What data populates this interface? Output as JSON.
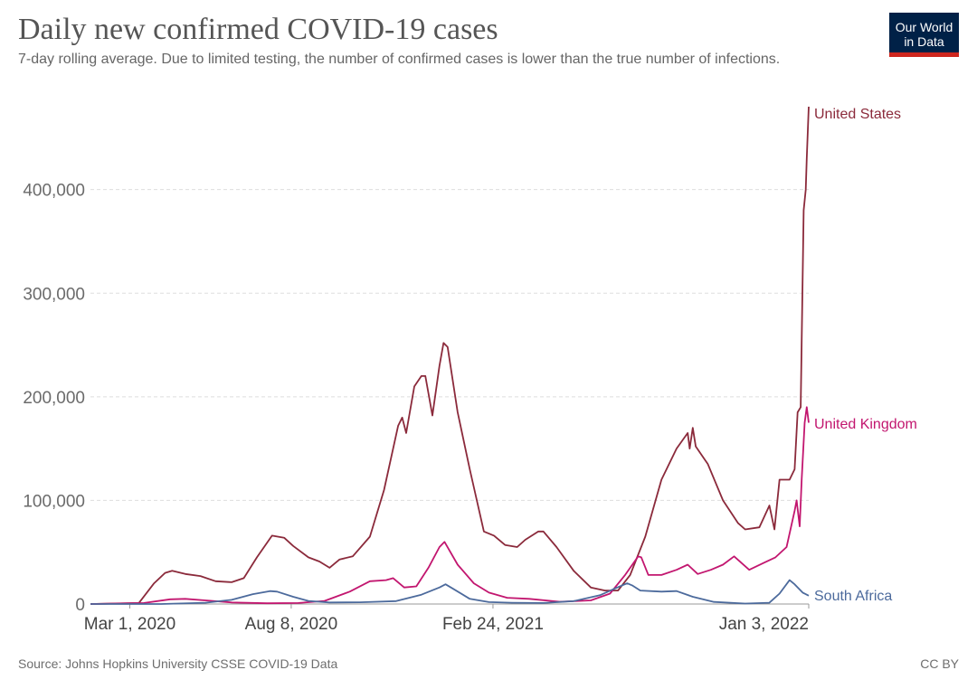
{
  "title": "Daily new confirmed COVID-19 cases",
  "subtitle": "7-day rolling average. Due to limited testing, the number of confirmed cases is lower than the true number of infections.",
  "logo": {
    "line1": "Our World",
    "line2": "in Data"
  },
  "footer": {
    "source": "Source: Johns Hopkins University CSSE COVID-19 Data",
    "license": "CC BY"
  },
  "colors": {
    "united_states": "#8b2a3b",
    "united_kingdom": "#c2166f",
    "south_africa": "#4c6a9c",
    "logo_bg": "#002147",
    "logo_bar": "#ce261e"
  },
  "chart_data": {
    "type": "line",
    "title": "Daily new confirmed COVID-19 cases",
    "ylim": [
      0,
      480000
    ],
    "xlim": [
      "2020-01-22",
      "2022-01-03"
    ],
    "y_ticks": [
      {
        "value": 0,
        "label": "0"
      },
      {
        "value": 100000,
        "label": "100,000"
      },
      {
        "value": 200000,
        "label": "200,000"
      },
      {
        "value": 300000,
        "label": "300,000"
      },
      {
        "value": 400000,
        "label": "400,000"
      }
    ],
    "x_ticks": [
      {
        "date": "2020-03-01",
        "label": "Mar 1, 2020"
      },
      {
        "date": "2020-08-08",
        "label": "Aug 8, 2020"
      },
      {
        "date": "2021-02-24",
        "label": "Feb 24, 2021"
      },
      {
        "date": "2022-01-03",
        "label": "Jan 3, 2022"
      }
    ],
    "grid": "horizontal-dashed",
    "legend": "end-of-line labels",
    "series": [
      {
        "name": "United States",
        "color": "#8b2a3b",
        "points": [
          [
            "2020-01-22",
            0
          ],
          [
            "2020-03-10",
            1000
          ],
          [
            "2020-03-25",
            20000
          ],
          [
            "2020-04-05",
            30000
          ],
          [
            "2020-04-12",
            32000
          ],
          [
            "2020-04-25",
            29000
          ],
          [
            "2020-05-10",
            27000
          ],
          [
            "2020-05-25",
            22000
          ],
          [
            "2020-06-10",
            21000
          ],
          [
            "2020-06-22",
            25000
          ],
          [
            "2020-07-05",
            45000
          ],
          [
            "2020-07-20",
            66000
          ],
          [
            "2020-08-01",
            64000
          ],
          [
            "2020-08-10",
            56000
          ],
          [
            "2020-08-25",
            45000
          ],
          [
            "2020-09-05",
            41000
          ],
          [
            "2020-09-15",
            35000
          ],
          [
            "2020-09-25",
            43000
          ],
          [
            "2020-10-08",
            46000
          ],
          [
            "2020-10-25",
            65000
          ],
          [
            "2020-11-08",
            110000
          ],
          [
            "2020-11-22",
            172000
          ],
          [
            "2020-11-26",
            180000
          ],
          [
            "2020-11-30",
            165000
          ],
          [
            "2020-12-08",
            210000
          ],
          [
            "2020-12-15",
            220000
          ],
          [
            "2020-12-19",
            220000
          ],
          [
            "2020-12-26",
            182000
          ],
          [
            "2021-01-02",
            230000
          ],
          [
            "2021-01-06",
            252000
          ],
          [
            "2021-01-10",
            248000
          ],
          [
            "2021-01-20",
            185000
          ],
          [
            "2021-02-01",
            130000
          ],
          [
            "2021-02-15",
            70000
          ],
          [
            "2021-02-25",
            66000
          ],
          [
            "2021-03-08",
            57000
          ],
          [
            "2021-03-20",
            55000
          ],
          [
            "2021-03-28",
            62000
          ],
          [
            "2021-04-10",
            70000
          ],
          [
            "2021-04-15",
            70000
          ],
          [
            "2021-04-28",
            55000
          ],
          [
            "2021-05-15",
            32000
          ],
          [
            "2021-06-01",
            16000
          ],
          [
            "2021-06-15",
            13000
          ],
          [
            "2021-06-28",
            13000
          ],
          [
            "2021-07-10",
            28000
          ],
          [
            "2021-07-25",
            65000
          ],
          [
            "2021-08-10",
            120000
          ],
          [
            "2021-08-25",
            150000
          ],
          [
            "2021-09-05",
            165000
          ],
          [
            "2021-09-07",
            150000
          ],
          [
            "2021-09-10",
            170000
          ],
          [
            "2021-09-13",
            152000
          ],
          [
            "2021-09-25",
            135000
          ],
          [
            "2021-10-10",
            100000
          ],
          [
            "2021-10-25",
            78000
          ],
          [
            "2021-11-01",
            72000
          ],
          [
            "2021-11-15",
            74000
          ],
          [
            "2021-11-25",
            95000
          ],
          [
            "2021-11-30",
            72000
          ],
          [
            "2021-12-05",
            120000
          ],
          [
            "2021-12-15",
            120000
          ],
          [
            "2021-12-20",
            130000
          ],
          [
            "2021-12-23",
            185000
          ],
          [
            "2021-12-26",
            190000
          ],
          [
            "2021-12-29",
            380000
          ],
          [
            "2021-12-31",
            400000
          ],
          [
            "2022-01-01",
            430000
          ],
          [
            "2022-01-03",
            480000
          ]
        ]
      },
      {
        "name": "United Kingdom",
        "color": "#c2166f",
        "points": [
          [
            "2020-01-22",
            0
          ],
          [
            "2020-03-15",
            1000
          ],
          [
            "2020-04-10",
            4500
          ],
          [
            "2020-04-25",
            5000
          ],
          [
            "2020-05-15",
            3500
          ],
          [
            "2020-06-10",
            1500
          ],
          [
            "2020-07-15",
            700
          ],
          [
            "2020-08-15",
            1000
          ],
          [
            "2020-09-10",
            3000
          ],
          [
            "2020-10-05",
            12000
          ],
          [
            "2020-10-25",
            22000
          ],
          [
            "2020-11-10",
            23000
          ],
          [
            "2020-11-17",
            25000
          ],
          [
            "2020-11-28",
            16000
          ],
          [
            "2020-12-10",
            17000
          ],
          [
            "2020-12-22",
            35000
          ],
          [
            "2021-01-02",
            55000
          ],
          [
            "2021-01-07",
            60000
          ],
          [
            "2021-01-20",
            38000
          ],
          [
            "2021-02-05",
            20000
          ],
          [
            "2021-02-20",
            11000
          ],
          [
            "2021-03-10",
            6000
          ],
          [
            "2021-04-01",
            5000
          ],
          [
            "2021-05-01",
            2200
          ],
          [
            "2021-06-01",
            3500
          ],
          [
            "2021-06-20",
            10000
          ],
          [
            "2021-07-05",
            28000
          ],
          [
            "2021-07-18",
            46000
          ],
          [
            "2021-07-21",
            45000
          ],
          [
            "2021-07-28",
            28000
          ],
          [
            "2021-08-10",
            28000
          ],
          [
            "2021-08-25",
            33000
          ],
          [
            "2021-09-05",
            38000
          ],
          [
            "2021-09-15",
            29000
          ],
          [
            "2021-09-28",
            33000
          ],
          [
            "2021-10-10",
            38000
          ],
          [
            "2021-10-21",
            46000
          ],
          [
            "2021-11-05",
            33000
          ],
          [
            "2021-11-20",
            40000
          ],
          [
            "2021-12-01",
            45000
          ],
          [
            "2021-12-12",
            55000
          ],
          [
            "2021-12-20",
            90000
          ],
          [
            "2021-12-22",
            100000
          ],
          [
            "2021-12-25",
            75000
          ],
          [
            "2021-12-27",
            120000
          ],
          [
            "2021-12-30",
            175000
          ],
          [
            "2022-01-01",
            190000
          ],
          [
            "2022-01-03",
            175000
          ]
        ]
      },
      {
        "name": "South Africa",
        "color": "#4c6a9c",
        "points": [
          [
            "2020-01-22",
            0
          ],
          [
            "2020-04-01",
            0
          ],
          [
            "2020-05-15",
            1200
          ],
          [
            "2020-06-10",
            4000
          ],
          [
            "2020-07-01",
            9500
          ],
          [
            "2020-07-18",
            12500
          ],
          [
            "2020-07-25",
            12000
          ],
          [
            "2020-08-10",
            7000
          ],
          [
            "2020-08-25",
            3000
          ],
          [
            "2020-09-15",
            1500
          ],
          [
            "2020-10-15",
            1700
          ],
          [
            "2020-11-20",
            2800
          ],
          [
            "2020-12-15",
            9000
          ],
          [
            "2021-01-02",
            16000
          ],
          [
            "2021-01-08",
            19000
          ],
          [
            "2021-01-15",
            15000
          ],
          [
            "2021-02-01",
            5000
          ],
          [
            "2021-02-20",
            1800
          ],
          [
            "2021-03-15",
            1200
          ],
          [
            "2021-04-15",
            1000
          ],
          [
            "2021-05-15",
            2800
          ],
          [
            "2021-06-10",
            8500
          ],
          [
            "2021-06-25",
            15000
          ],
          [
            "2021-07-07",
            20000
          ],
          [
            "2021-07-12",
            18000
          ],
          [
            "2021-07-20",
            13000
          ],
          [
            "2021-08-10",
            12000
          ],
          [
            "2021-08-25",
            12500
          ],
          [
            "2021-09-10",
            7000
          ],
          [
            "2021-10-01",
            2000
          ],
          [
            "2021-11-01",
            400
          ],
          [
            "2021-11-25",
            1200
          ],
          [
            "2021-12-05",
            10000
          ],
          [
            "2021-12-15",
            23000
          ],
          [
            "2021-12-20",
            19000
          ],
          [
            "2021-12-28",
            11000
          ],
          [
            "2022-01-03",
            8000
          ]
        ]
      }
    ]
  }
}
